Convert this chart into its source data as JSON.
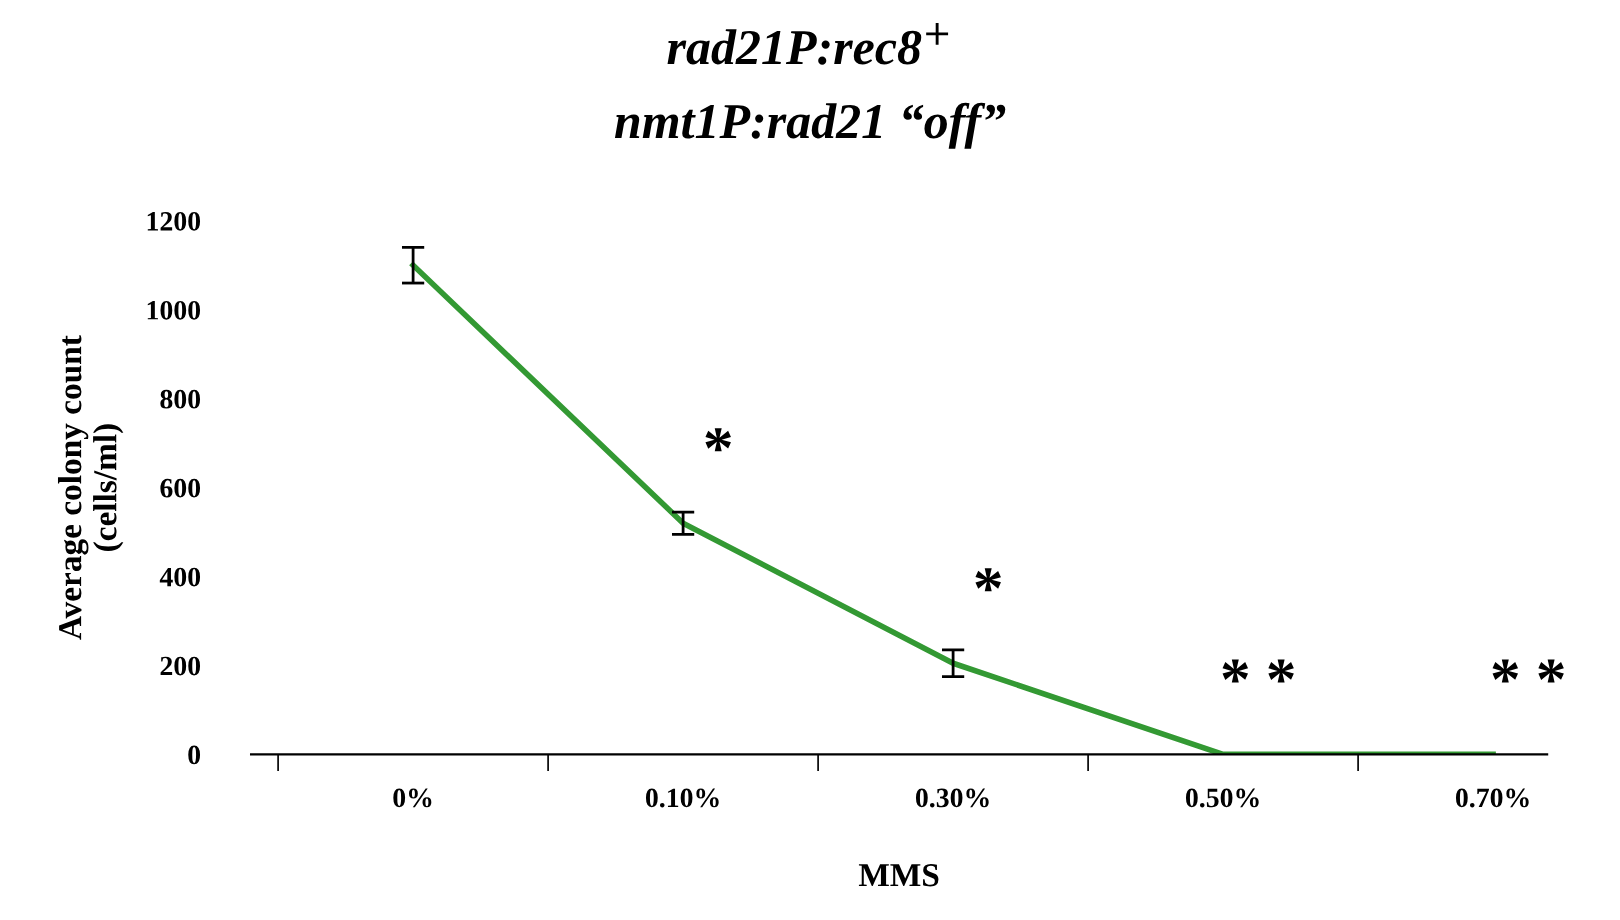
{
  "chart_data": {
    "type": "line",
    "title": "rad21P:rec8$^{+}$",
    "subtitle": "nmt1P:rad21 “off”",
    "xlabel": "MMS",
    "ylabel": "Average colony count\n(cells/ml)",
    "categories": [
      "0%",
      "0.10%",
      "0.30%",
      "0.50%",
      "0.70%"
    ],
    "series": [
      {
        "color": "#339933",
        "values": [
          1100,
          520,
          205,
          0,
          0
        ],
        "errors": [
          40,
          25,
          30,
          null,
          null
        ]
      }
    ],
    "ylim": [
      0,
      1200
    ],
    "yticks": [
      0,
      200,
      400,
      600,
      800,
      1000,
      1200
    ],
    "grid": false,
    "legend": false,
    "marker": "none",
    "line_style": "solid",
    "annotations": [
      "*",
      "*",
      "* *",
      "* *"
    ]
  }
}
